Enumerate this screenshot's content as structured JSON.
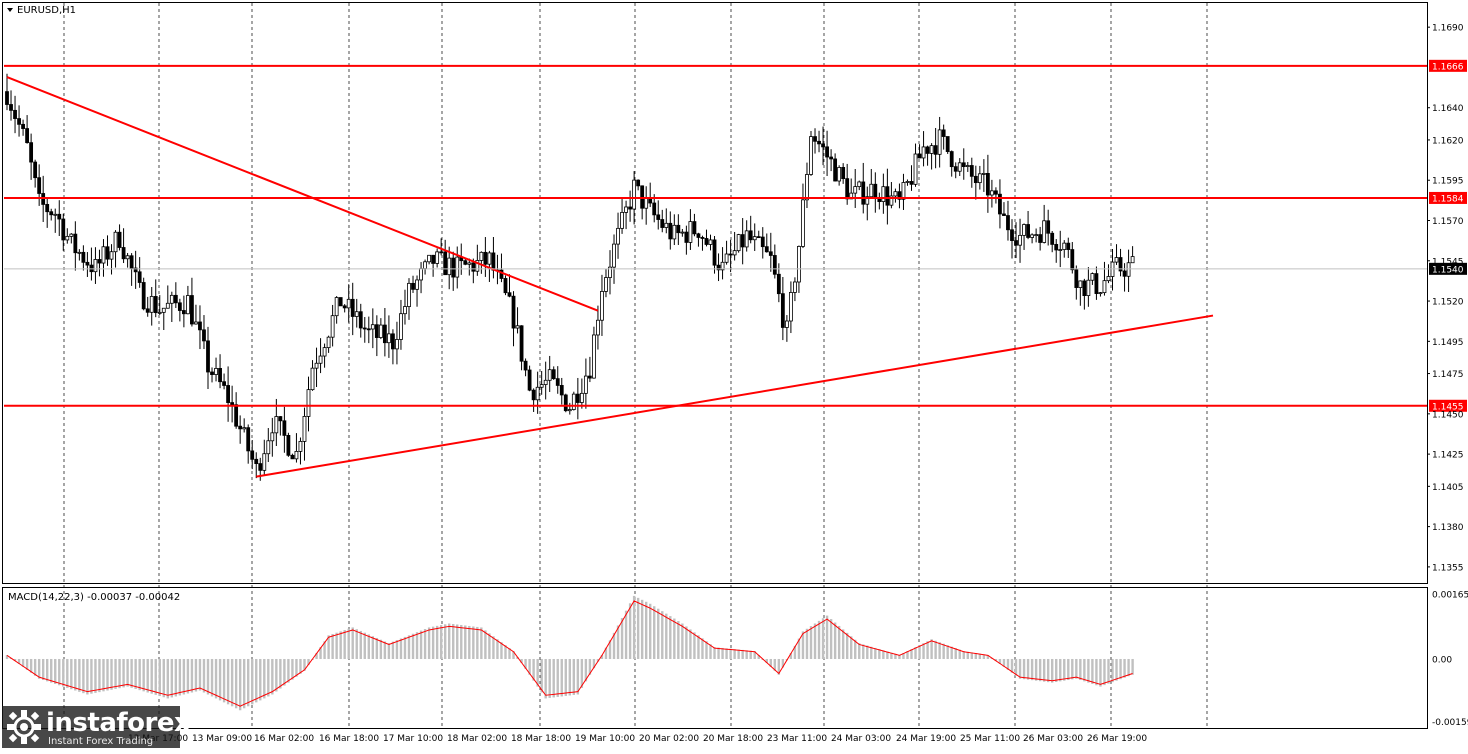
{
  "symbol_title": "EURUSD,H1",
  "macd_label": "MACD(14,22,3) -0.00037 -0.00042",
  "current_price": "1.1540",
  "colors": {
    "level": "#ff0000",
    "level_badge": "#ff0000",
    "candle": "#000000",
    "grid": "#000000",
    "histogram": "#c0c0c0",
    "signal": "#ff0000",
    "current_badge": "#000000"
  },
  "logo": {
    "name": "instaforex",
    "tagline": "Instant Forex Trading"
  },
  "chart_data": [
    {
      "type": "candlestick",
      "symbol": "EURUSD",
      "timeframe": "H1",
      "y_axis_ticks": [
        "1.1690",
        "1.1640",
        "1.1620",
        "1.1595",
        "1.1570",
        "1.1545",
        "1.1520",
        "1.1495",
        "1.1475",
        "1.1450",
        "1.1425",
        "1.1405",
        "1.1380",
        "1.1355"
      ],
      "ylim": [
        1.1345,
        1.1705
      ],
      "x_tick_labels": [
        "13 Mar 09:00",
        "16 Mar 02:00",
        "16 Mar 18:00",
        "17 Mar 10:00",
        "18 Mar 02:00",
        "18 Mar 18:00",
        "19 Mar 10:00",
        "20 Mar 02:00",
        "20 Mar 18:00",
        "23 Mar 11:00",
        "24 Mar 03:00",
        "24 Mar 19:00",
        "25 Mar 11:00",
        "26 Mar 03:00",
        "26 Mar 19:00"
      ],
      "x_tick_labels_partial": [
        "13 Mar 17:00"
      ],
      "horizontal_levels": [
        {
          "value": 1.1666,
          "label": "1.1666"
        },
        {
          "value": 1.1584,
          "label": "1.1584"
        },
        {
          "value": 1.1455,
          "label": "1.1455"
        }
      ],
      "current_price": 1.154,
      "trendlines": [
        {
          "name": "descending",
          "from": {
            "bar": 0,
            "price": 1.1659
          },
          "to": {
            "bar": 147,
            "price": 1.1514
          }
        },
        {
          "name": "ascending",
          "from": {
            "bar": 62,
            "price": 1.1411
          },
          "to": {
            "bar": 300,
            "price": 1.1511
          }
        }
      ],
      "waypoints": [
        [
          0,
          1.165
        ],
        [
          5,
          1.1615
        ],
        [
          8,
          1.158
        ],
        [
          12,
          1.1575
        ],
        [
          16,
          1.1555
        ],
        [
          22,
          1.154
        ],
        [
          28,
          1.156
        ],
        [
          33,
          1.1525
        ],
        [
          38,
          1.1515
        ],
        [
          45,
          1.152
        ],
        [
          50,
          1.148
        ],
        [
          55,
          1.146
        ],
        [
          62,
          1.1415
        ],
        [
          66,
          1.1445
        ],
        [
          72,
          1.1425
        ],
        [
          76,
          1.148
        ],
        [
          83,
          1.152
        ],
        [
          90,
          1.15
        ],
        [
          96,
          1.1495
        ],
        [
          100,
          1.1525
        ],
        [
          106,
          1.1545
        ],
        [
          112,
          1.154
        ],
        [
          120,
          1.1545
        ],
        [
          126,
          1.151
        ],
        [
          130,
          1.1465
        ],
        [
          135,
          1.147
        ],
        [
          140,
          1.1455
        ],
        [
          145,
          1.148
        ],
        [
          148,
          1.153
        ],
        [
          152,
          1.156
        ],
        [
          156,
          1.159
        ],
        [
          160,
          1.1575
        ],
        [
          166,
          1.156
        ],
        [
          172,
          1.1565
        ],
        [
          178,
          1.154
        ],
        [
          184,
          1.156
        ],
        [
          190,
          1.1545
        ],
        [
          194,
          1.15
        ],
        [
          197,
          1.1555
        ],
        [
          200,
          1.1625
        ],
        [
          204,
          1.161
        ],
        [
          210,
          1.1585
        ],
        [
          216,
          1.159
        ],
        [
          222,
          1.158
        ],
        [
          228,
          1.1615
        ],
        [
          232,
          1.162
        ],
        [
          238,
          1.16
        ],
        [
          244,
          1.159
        ],
        [
          248,
          1.157
        ],
        [
          252,
          1.156
        ],
        [
          258,
          1.1565
        ],
        [
          263,
          1.1555
        ],
        [
          267,
          1.153
        ],
        [
          272,
          1.153
        ],
        [
          276,
          1.154
        ],
        [
          280,
          1.1542
        ]
      ]
    },
    {
      "type": "macd",
      "params": "14,22,3",
      "value": -0.00037,
      "signal": -0.00042,
      "y_axis_ticks": [
        "0.00165",
        "0.00",
        "-0.00159"
      ],
      "ylim": [
        -0.00175,
        0.0018
      ],
      "waypoints": [
        [
          0,
          0.0001
        ],
        [
          8,
          -0.0005
        ],
        [
          20,
          -0.0009
        ],
        [
          30,
          -0.0007
        ],
        [
          40,
          -0.001
        ],
        [
          48,
          -0.0008
        ],
        [
          58,
          -0.0013
        ],
        [
          66,
          -0.0009
        ],
        [
          74,
          -0.0003
        ],
        [
          80,
          0.0006
        ],
        [
          86,
          0.0008
        ],
        [
          95,
          0.0004
        ],
        [
          105,
          0.0008
        ],
        [
          110,
          0.0009
        ],
        [
          118,
          0.0008
        ],
        [
          126,
          0.0002
        ],
        [
          134,
          -0.001
        ],
        [
          142,
          -0.0009
        ],
        [
          148,
          0.0001
        ],
        [
          156,
          0.0016
        ],
        [
          160,
          0.0014
        ],
        [
          168,
          0.0009
        ],
        [
          176,
          0.0003
        ],
        [
          186,
          0.0002
        ],
        [
          192,
          -0.0004
        ],
        [
          198,
          0.0007
        ],
        [
          204,
          0.0011
        ],
        [
          212,
          0.0004
        ],
        [
          222,
          0.0001
        ],
        [
          230,
          0.0005
        ],
        [
          238,
          0.0002
        ],
        [
          244,
          0.0001
        ],
        [
          252,
          -0.0005
        ],
        [
          260,
          -0.0006
        ],
        [
          266,
          -0.0005
        ],
        [
          272,
          -0.0007
        ],
        [
          280,
          -0.0004
        ]
      ]
    }
  ]
}
